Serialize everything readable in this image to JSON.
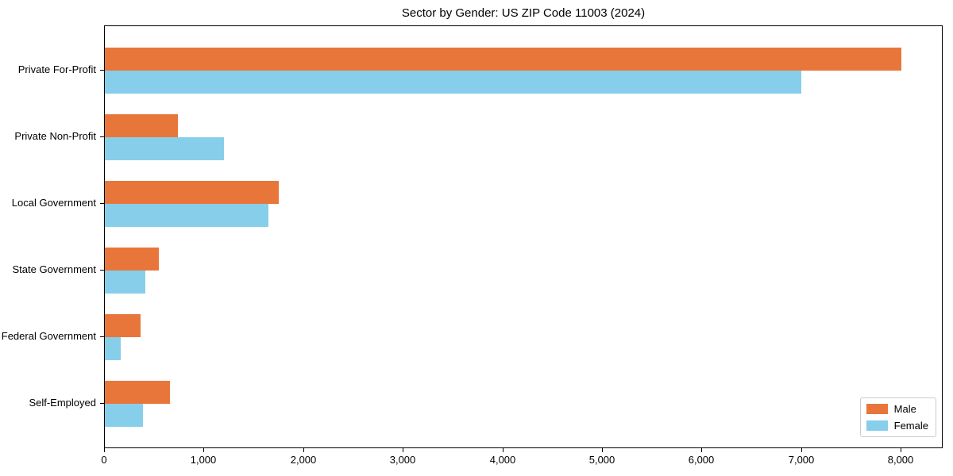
{
  "title": "Sector by Gender: US ZIP Code 11003 (2024)",
  "chart_data": {
    "type": "bar",
    "orientation": "horizontal",
    "title": "Sector by Gender: US ZIP Code 11003 (2024)",
    "categories": [
      "Private For-Profit",
      "Private Non-Profit",
      "Local Government",
      "State Government",
      "Federal Government",
      "Self-Employed"
    ],
    "series": [
      {
        "name": "Male",
        "color": "#e8763b",
        "values": [
          8000,
          730,
          1750,
          540,
          360,
          650
        ]
      },
      {
        "name": "Female",
        "color": "#87ceeb",
        "values": [
          6990,
          1200,
          1640,
          410,
          160,
          380
        ]
      }
    ],
    "xlabel": "",
    "ylabel": "",
    "xlim": [
      0,
      8420
    ],
    "x_ticks": [
      0,
      1000,
      2000,
      3000,
      4000,
      5000,
      6000,
      7000,
      8000
    ],
    "x_tick_labels": [
      "0",
      "1,000",
      "2,000",
      "3,000",
      "4,000",
      "5,000",
      "6,000",
      "7,000",
      "8,000"
    ],
    "grid": false,
    "legend_position": "lower right"
  },
  "legend": {
    "items": [
      {
        "label": "Male",
        "color": "#e8763b"
      },
      {
        "label": "Female",
        "color": "#87ceeb"
      }
    ]
  }
}
